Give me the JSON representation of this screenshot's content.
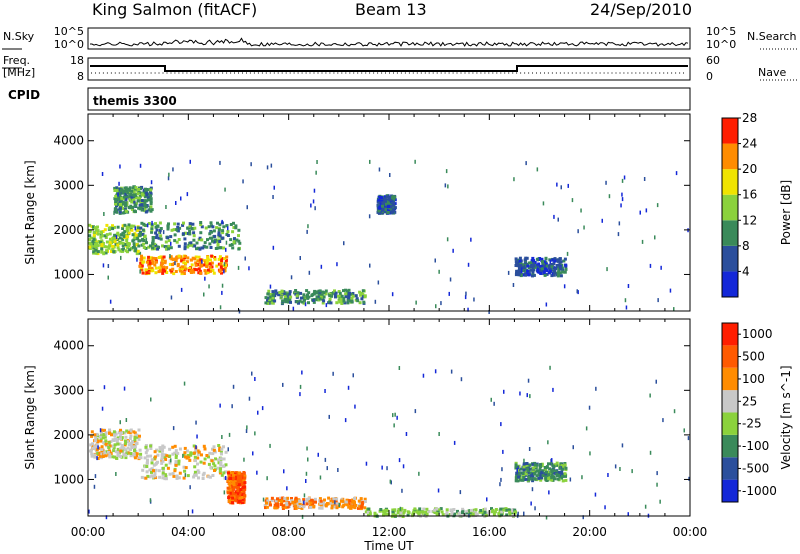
{
  "header": {
    "station": "King Salmon (fitACF)",
    "beam": "Beam 13",
    "date": "24/Sep/2010"
  },
  "noise_panel": {
    "left_label": "N.Sky",
    "right_label": "N.Search",
    "ticks_left": [
      "10^5",
      "10^0"
    ],
    "ticks_right": [
      "10^5",
      "10^0"
    ]
  },
  "freq_panel": {
    "left_label_1": "Freq.",
    "left_label_2": "[MHz]",
    "right_label": "Nave",
    "ticks_left": [
      "18",
      "8"
    ],
    "ticks_right": [
      "60",
      "0"
    ]
  },
  "cpid": {
    "label": "CPID",
    "value": "themis 3300"
  },
  "chart_data": [
    {
      "type": "heatmap",
      "title": "Power",
      "ylabel": "Slant Range [km]",
      "xlabel": "Time UT",
      "x_ticks": [
        "00:00",
        "04:00",
        "08:00",
        "12:00",
        "16:00",
        "20:00",
        "00:00"
      ],
      "y_ticks": [
        "1000",
        "2000",
        "3000",
        "4000"
      ],
      "ylim": [
        180,
        4600
      ],
      "colorbar_label": "Power [dB]",
      "colorbar_ticks": [
        "4",
        "8",
        "12",
        "16",
        "20",
        "24",
        "28"
      ],
      "colors": [
        "#1428d8",
        "#2b4f9c",
        "#3a8a5a",
        "#8bd23c",
        "#f0e400",
        "#ff8c00",
        "#ff1e00"
      ],
      "regions": [
        {
          "t": [
            0.0,
            2.0
          ],
          "r": [
            1500,
            2150
          ],
          "level": 3
        },
        {
          "t": [
            2.0,
            5.5
          ],
          "r": [
            1050,
            1450
          ],
          "level": 5
        },
        {
          "t": [
            2.0,
            6.0
          ],
          "r": [
            1600,
            2200
          ],
          "level": 2
        },
        {
          "t": [
            1.0,
            2.5
          ],
          "r": [
            2400,
            3000
          ],
          "level": 2
        },
        {
          "t": [
            7.0,
            11.0
          ],
          "r": [
            380,
            680
          ],
          "level": 2
        },
        {
          "t": [
            17.0,
            19.0
          ],
          "r": [
            1000,
            1400
          ],
          "level": 1
        },
        {
          "t": [
            11.5,
            12.2
          ],
          "r": [
            2400,
            2800
          ],
          "level": 1
        }
      ]
    },
    {
      "type": "heatmap",
      "title": "Velocity",
      "ylabel": "Slant Range [km]",
      "xlabel": "Time UT",
      "x_ticks": [
        "00:00",
        "04:00",
        "08:00",
        "12:00",
        "16:00",
        "20:00",
        "00:00"
      ],
      "y_ticks": [
        "1000",
        "2000",
        "3000",
        "4000"
      ],
      "ylim": [
        180,
        4600
      ],
      "colorbar_label": "Velocity [m s^-1]",
      "colorbar_ticks": [
        "1000",
        "500",
        "100",
        "25",
        "-25",
        "-100",
        "-500",
        "-1000"
      ],
      "colors": [
        "#1428d8",
        "#2b4f9c",
        "#3a8a5a",
        "#8bd23c",
        "#c8c8c8",
        "#ff8c00",
        "#ff5a00",
        "#ff1e00"
      ],
      "regions": [
        {
          "t": [
            0.0,
            2.0
          ],
          "r": [
            1500,
            2150
          ],
          "level": 4
        },
        {
          "t": [
            2.0,
            5.5
          ],
          "r": [
            1050,
            1800
          ],
          "level": 4
        },
        {
          "t": [
            5.5,
            6.2
          ],
          "r": [
            500,
            1200
          ],
          "level": 6
        },
        {
          "t": [
            7.0,
            11.0
          ],
          "r": [
            380,
            620
          ],
          "level": 5
        },
        {
          "t": [
            11.0,
            17.0
          ],
          "r": [
            200,
            380
          ],
          "level": 3
        },
        {
          "t": [
            17.0,
            19.0
          ],
          "r": [
            1000,
            1400
          ],
          "level": 2
        }
      ]
    }
  ]
}
